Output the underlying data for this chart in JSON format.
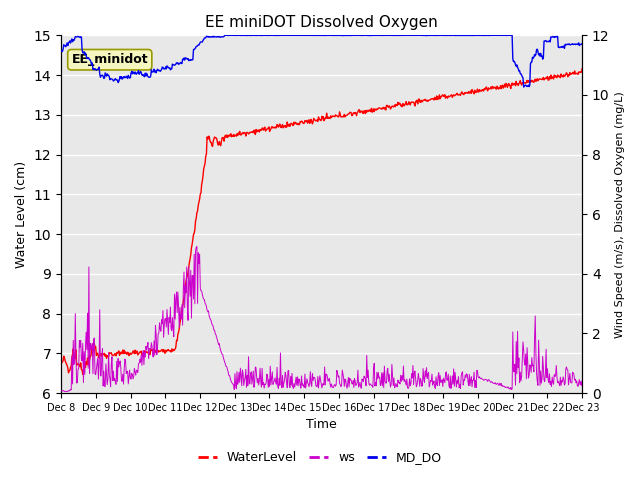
{
  "title": "EE miniDOT Dissolved Oxygen",
  "xlabel": "Time",
  "ylabel_left": "Water Level (cm)",
  "ylabel_right": "Wind Speed (m/s), Dissolved Oxygen (mg/L)",
  "ylim_left": [
    6.0,
    15.0
  ],
  "ylim_right": [
    0,
    12
  ],
  "yticks_left": [
    6.0,
    7.0,
    8.0,
    9.0,
    10.0,
    11.0,
    12.0,
    13.0,
    14.0,
    15.0
  ],
  "yticks_right": [
    0,
    2,
    4,
    6,
    8,
    10,
    12
  ],
  "xtick_labels": [
    "Dec 8",
    "Dec 9",
    "Dec 10",
    "Dec 11",
    "Dec 12",
    "Dec 13",
    "Dec 14",
    "Dec 15",
    "Dec 16",
    "Dec 17",
    "Dec 18",
    "Dec 19",
    "Dec 20",
    "Dec 21",
    "Dec 22",
    "Dec 23"
  ],
  "annotation_box_text": "EE_minidot",
  "colors": {
    "WaterLevel": "#ff0000",
    "ws": "#cc00cc",
    "MD_DO": "#0000ee",
    "bg_inner": "#e8e8e8",
    "bg_outer": "#ffffff"
  },
  "legend_labels": [
    "WaterLevel",
    "ws",
    "MD_DO"
  ],
  "n_days": 16,
  "pts_per_day": 48
}
